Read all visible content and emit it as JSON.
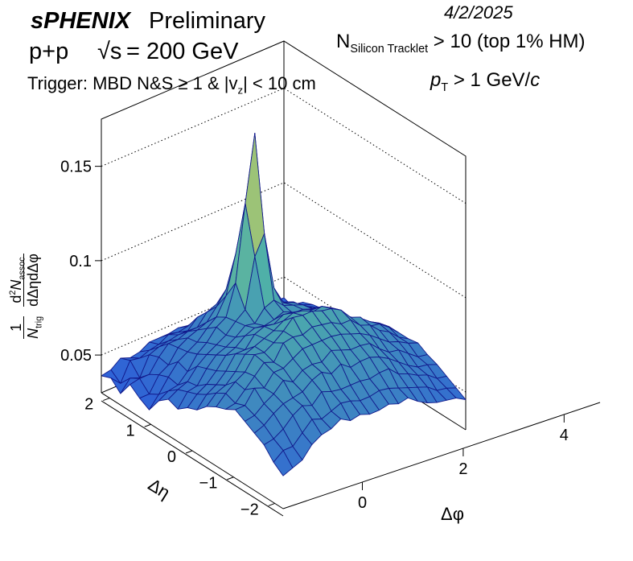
{
  "header": {
    "experiment": "sPHENIX",
    "status": "Preliminary",
    "date": "4/2/2025",
    "collision": "p+p",
    "energy_sym": "√s",
    "energy_val": "= 200 GeV",
    "tracklet_prefix": "N",
    "tracklet_sub": "Silicon Tracklet",
    "tracklet_cut": "> 10 (top 1% HM)",
    "trigger_text": "Trigger: MBD N&S   ≥ 1 & |v",
    "trigger_sub": "z",
    "trigger_tail": "| < 10 cm",
    "pt_prefix": "p",
    "pt_sub": "T",
    "pt_cut": ">  1 GeV/",
    "pt_unit": "c"
  },
  "chart_data": {
    "type": "surface3d",
    "title": "",
    "xlabel": "Δφ",
    "ylabel": "Δη",
    "zlabel": {
      "prefix": "1",
      "ntrig": "N",
      "ntrig_sub": "trig",
      "num_d": "d",
      "num_sup": "2",
      "num_n": "N",
      "num_sub": "assoc",
      "den": "dΔηdΔφ"
    },
    "x_range": [
      -1.5708,
      4.7124
    ],
    "y_range": [
      -2.2,
      2.2
    ],
    "z_range": [
      0.03,
      0.175
    ],
    "x_ticks": [
      0,
      2,
      4
    ],
    "y_ticks": [
      -2,
      -1,
      0,
      1,
      2
    ],
    "z_ticks": [
      0.05,
      0.1,
      0.15
    ],
    "x_tick_labels": [
      "0",
      "2",
      "4"
    ],
    "y_tick_labels": [
      "−2",
      "−1",
      "0",
      "1",
      "2"
    ],
    "z_tick_labels": [
      "0.05",
      "0.1",
      "0.15"
    ],
    "nx": 20,
    "ny": 20,
    "z_values": [
      [
        0.039,
        0.041,
        0.036,
        0.044,
        0.04,
        0.037,
        0.045,
        0.049,
        0.047,
        0.051,
        0.053,
        0.058,
        0.061,
        0.063,
        0.066,
        0.063,
        0.06,
        0.057,
        0.051,
        0.047
      ],
      [
        0.04,
        0.036,
        0.042,
        0.045,
        0.04,
        0.043,
        0.048,
        0.052,
        0.054,
        0.056,
        0.059,
        0.063,
        0.066,
        0.064,
        0.066,
        0.064,
        0.062,
        0.058,
        0.055,
        0.049
      ],
      [
        0.044,
        0.046,
        0.04,
        0.045,
        0.048,
        0.05,
        0.049,
        0.054,
        0.055,
        0.059,
        0.062,
        0.065,
        0.07,
        0.069,
        0.073,
        0.068,
        0.066,
        0.061,
        0.055,
        0.051
      ],
      [
        0.042,
        0.045,
        0.05,
        0.052,
        0.051,
        0.056,
        0.054,
        0.06,
        0.062,
        0.064,
        0.067,
        0.07,
        0.073,
        0.074,
        0.071,
        0.071,
        0.069,
        0.066,
        0.06,
        0.057
      ],
      [
        0.043,
        0.047,
        0.052,
        0.057,
        0.058,
        0.059,
        0.061,
        0.064,
        0.067,
        0.07,
        0.074,
        0.077,
        0.08,
        0.079,
        0.077,
        0.076,
        0.07,
        0.069,
        0.065,
        0.06
      ],
      [
        0.046,
        0.048,
        0.053,
        0.057,
        0.061,
        0.062,
        0.065,
        0.067,
        0.069,
        0.072,
        0.074,
        0.079,
        0.079,
        0.077,
        0.077,
        0.073,
        0.071,
        0.067,
        0.063,
        0.061
      ],
      [
        0.046,
        0.051,
        0.054,
        0.059,
        0.063,
        0.067,
        0.071,
        0.07,
        0.072,
        0.076,
        0.08,
        0.081,
        0.082,
        0.085,
        0.08,
        0.077,
        0.075,
        0.072,
        0.065,
        0.064
      ],
      [
        0.046,
        0.05,
        0.054,
        0.059,
        0.065,
        0.071,
        0.074,
        0.075,
        0.076,
        0.078,
        0.082,
        0.083,
        0.086,
        0.086,
        0.083,
        0.078,
        0.077,
        0.07,
        0.067,
        0.061
      ],
      [
        0.047,
        0.051,
        0.059,
        0.065,
        0.071,
        0.08,
        0.09,
        0.079,
        0.075,
        0.077,
        0.081,
        0.086,
        0.091,
        0.085,
        0.083,
        0.077,
        0.074,
        0.069,
        0.066,
        0.062
      ],
      [
        0.046,
        0.052,
        0.059,
        0.067,
        0.078,
        0.1,
        0.13,
        0.105,
        0.081,
        0.078,
        0.084,
        0.088,
        0.09,
        0.087,
        0.083,
        0.081,
        0.077,
        0.069,
        0.064,
        0.06
      ],
      [
        0.047,
        0.053,
        0.06,
        0.068,
        0.08,
        0.11,
        0.165,
        0.115,
        0.083,
        0.08,
        0.083,
        0.087,
        0.09,
        0.086,
        0.083,
        0.079,
        0.073,
        0.069,
        0.064,
        0.06
      ],
      [
        0.047,
        0.051,
        0.058,
        0.065,
        0.072,
        0.083,
        0.095,
        0.084,
        0.078,
        0.077,
        0.08,
        0.084,
        0.088,
        0.085,
        0.082,
        0.077,
        0.074,
        0.068,
        0.065,
        0.061
      ],
      [
        0.048,
        0.05,
        0.056,
        0.061,
        0.067,
        0.072,
        0.076,
        0.074,
        0.076,
        0.077,
        0.08,
        0.085,
        0.087,
        0.082,
        0.08,
        0.077,
        0.074,
        0.069,
        0.064,
        0.059
      ],
      [
        0.046,
        0.049,
        0.055,
        0.059,
        0.065,
        0.067,
        0.069,
        0.072,
        0.074,
        0.075,
        0.077,
        0.082,
        0.084,
        0.082,
        0.078,
        0.076,
        0.072,
        0.069,
        0.062,
        0.06
      ],
      [
        0.043,
        0.047,
        0.052,
        0.056,
        0.06,
        0.063,
        0.067,
        0.068,
        0.07,
        0.074,
        0.074,
        0.077,
        0.078,
        0.077,
        0.075,
        0.071,
        0.069,
        0.064,
        0.06,
        0.056
      ],
      [
        0.042,
        0.046,
        0.049,
        0.053,
        0.057,
        0.06,
        0.061,
        0.064,
        0.067,
        0.069,
        0.072,
        0.071,
        0.076,
        0.075,
        0.071,
        0.067,
        0.065,
        0.062,
        0.058,
        0.053
      ],
      [
        0.041,
        0.045,
        0.046,
        0.051,
        0.052,
        0.057,
        0.06,
        0.062,
        0.062,
        0.066,
        0.067,
        0.07,
        0.069,
        0.07,
        0.067,
        0.066,
        0.061,
        0.059,
        0.056,
        0.051
      ],
      [
        0.04,
        0.042,
        0.046,
        0.048,
        0.05,
        0.052,
        0.054,
        0.057,
        0.059,
        0.062,
        0.063,
        0.066,
        0.068,
        0.067,
        0.065,
        0.062,
        0.058,
        0.057,
        0.052,
        0.05
      ],
      [
        0.039,
        0.04,
        0.044,
        0.047,
        0.048,
        0.05,
        0.051,
        0.053,
        0.056,
        0.058,
        0.059,
        0.063,
        0.064,
        0.062,
        0.062,
        0.058,
        0.057,
        0.053,
        0.051,
        0.049
      ],
      [
        0.039,
        0.037,
        0.043,
        0.045,
        0.046,
        0.048,
        0.048,
        0.051,
        0.052,
        0.055,
        0.056,
        0.059,
        0.059,
        0.059,
        0.06,
        0.057,
        0.055,
        0.052,
        0.049,
        0.046
      ]
    ],
    "grid": "dotted-back-walls",
    "colors": {
      "surface_low": "#2f63d6",
      "surface_mid": "#4fb0a8",
      "surface_high": "#f2d840",
      "mesh": "#121a8c",
      "axis": "#000000"
    }
  }
}
